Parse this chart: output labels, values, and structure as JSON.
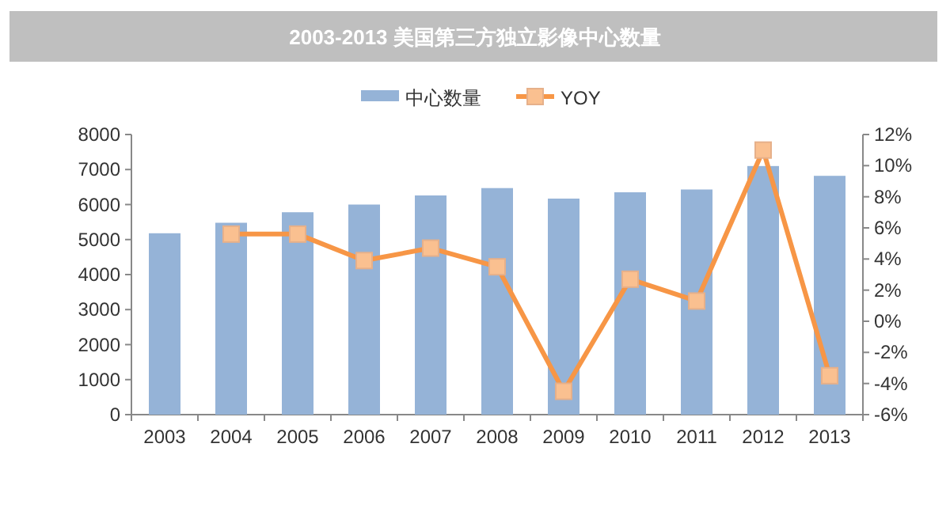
{
  "chart_data": {
    "type": "bar",
    "title": "2003-2013 美国第三方独立影像中心数量",
    "categories": [
      "2003",
      "2004",
      "2005",
      "2006",
      "2007",
      "2008",
      "2009",
      "2010",
      "2011",
      "2012",
      "2013"
    ],
    "series": [
      {
        "name": "中心数量",
        "color": "#95b3d7",
        "values": [
          5180,
          5480,
          5780,
          6000,
          6260,
          6470,
          6170,
          6350,
          6430,
          7100,
          6820
        ]
      },
      {
        "name": "YOY",
        "type": "line",
        "axis": "y2",
        "color": "#f79646",
        "marker": "square",
        "values": [
          null,
          5.6,
          5.6,
          3.9,
          4.7,
          3.5,
          -4.5,
          2.7,
          1.3,
          11.0,
          -3.5
        ]
      }
    ],
    "ylim": [
      0,
      8000
    ],
    "yticks": [
      0,
      1000,
      2000,
      3000,
      4000,
      5000,
      6000,
      7000,
      8000
    ],
    "y2lim": [
      -6,
      12
    ],
    "y2ticks": [
      {
        "value": -6,
        "label": "-6%"
      },
      {
        "value": -4,
        "label": "-4%"
      },
      {
        "value": -2,
        "label": "-2%"
      },
      {
        "value": 0,
        "label": "0%"
      },
      {
        "value": 2,
        "label": "2%"
      },
      {
        "value": 4,
        "label": "4%"
      },
      {
        "value": 6,
        "label": "6%"
      },
      {
        "value": 8,
        "label": "8%"
      },
      {
        "value": 10,
        "label": "10%"
      },
      {
        "value": 12,
        "label": "12%"
      }
    ],
    "legend": "top"
  }
}
